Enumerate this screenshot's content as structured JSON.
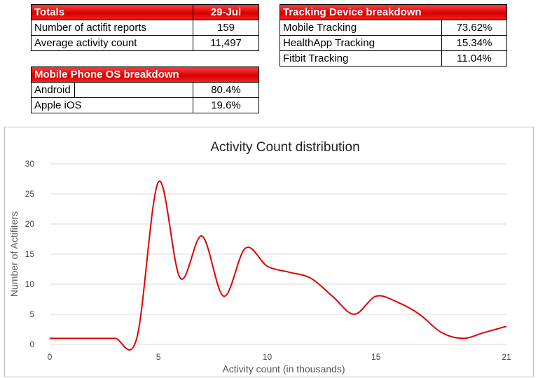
{
  "totals": {
    "header_label": "Totals",
    "header_date": "29-Jul",
    "rows": [
      {
        "label": "Number of actifit reports",
        "value": "159"
      },
      {
        "label": "Average activity count",
        "value": "11,497"
      }
    ]
  },
  "tracking": {
    "header": "Tracking Device breakdown",
    "rows": [
      {
        "label": "Mobile Tracking",
        "value": "73.62%"
      },
      {
        "label": "HealthApp Tracking",
        "value": "15.34%"
      },
      {
        "label": "Fitbit Tracking",
        "value": "11.04%"
      }
    ]
  },
  "os": {
    "header": "Mobile Phone OS breakdown",
    "rows": [
      {
        "label": "Android",
        "value": "80.4%"
      },
      {
        "label": "Apple iOS",
        "value": "19.6%"
      }
    ]
  },
  "chart_data": {
    "type": "line",
    "title": "Activity Count distribution",
    "xlabel": "Activity count (in thousands)",
    "ylabel": "Number of Actifiters",
    "xlim": [
      0,
      21
    ],
    "ylim": [
      0,
      30
    ],
    "xticks": [
      0,
      5,
      10,
      15,
      21
    ],
    "yticks": [
      0,
      5,
      10,
      15,
      20,
      25,
      30
    ],
    "grid": true,
    "line_color": "#e00000",
    "series": [
      {
        "x": [
          0,
          1,
          2,
          3,
          4,
          5,
          6,
          7,
          8,
          9,
          10,
          11,
          12,
          13,
          14,
          15,
          16,
          17,
          18,
          19,
          20,
          21
        ],
        "values": [
          1,
          1,
          1,
          1,
          1,
          27,
          11,
          18,
          8,
          16,
          13,
          12,
          11,
          8,
          5,
          8,
          7,
          5,
          2,
          1,
          2,
          3
        ]
      }
    ]
  }
}
